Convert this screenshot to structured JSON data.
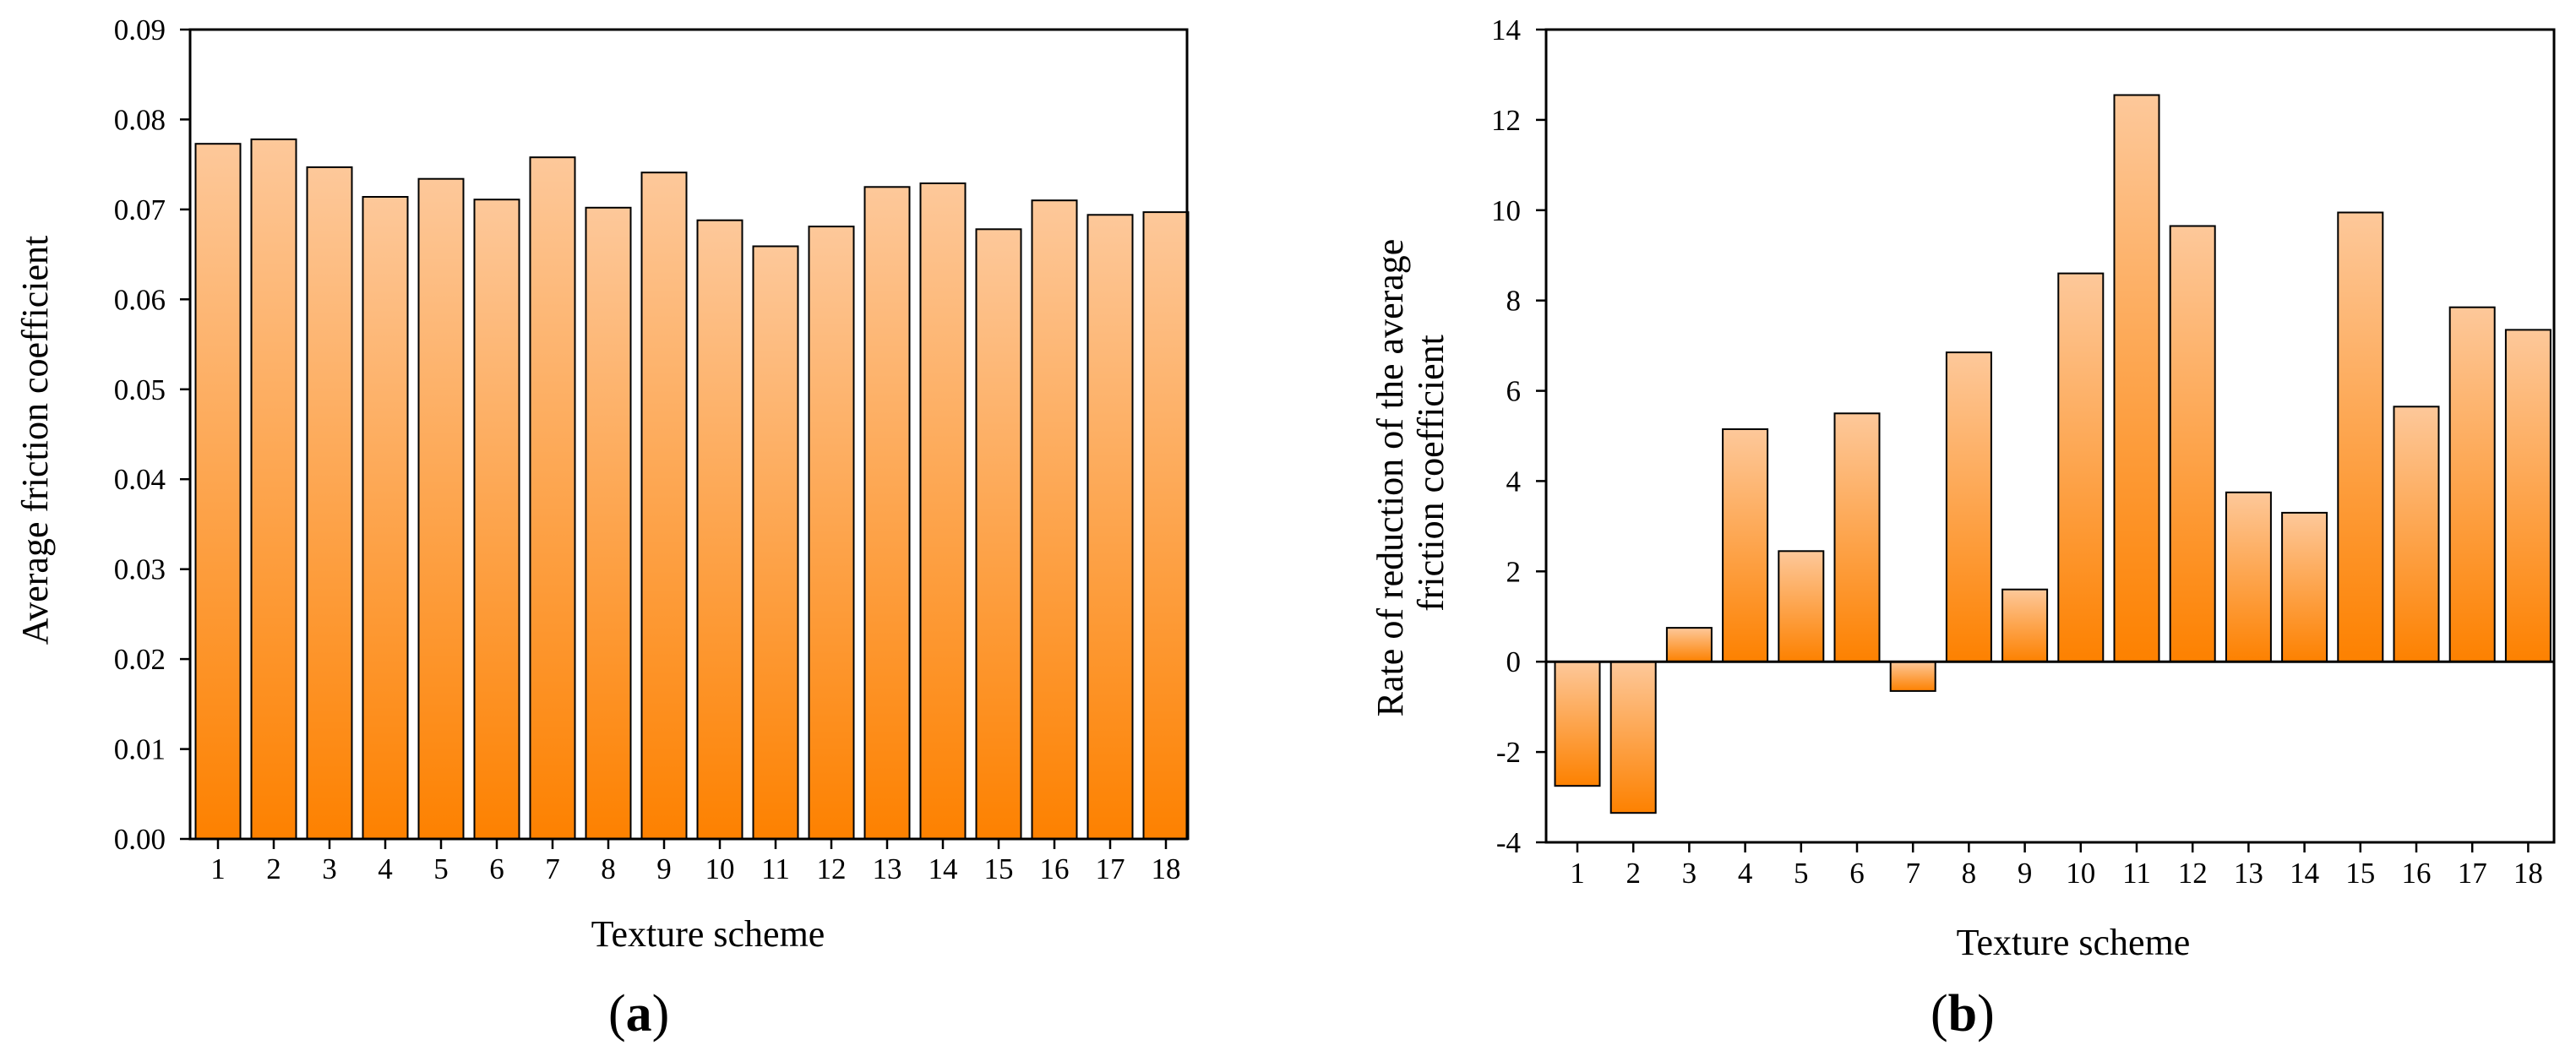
{
  "chart_data": [
    {
      "id": "a",
      "type": "bar",
      "panel_label": "a",
      "title": "",
      "xlabel": "Texture scheme",
      "ylabel": "Average friction coefficient",
      "categories": [
        "1",
        "2",
        "3",
        "4",
        "5",
        "6",
        "7",
        "8",
        "9",
        "10",
        "11",
        "12",
        "13",
        "14",
        "15",
        "16",
        "17",
        "18"
      ],
      "values": [
        0.0773,
        0.0778,
        0.0747,
        0.0714,
        0.0734,
        0.0711,
        0.0758,
        0.0702,
        0.0741,
        0.0688,
        0.0659,
        0.0681,
        0.0725,
        0.0729,
        0.0678,
        0.071,
        0.0694,
        0.0697
      ],
      "ylim": [
        0,
        0.09
      ],
      "yticks": [
        0.0,
        0.01,
        0.02,
        0.03,
        0.04,
        0.05,
        0.06,
        0.07,
        0.08,
        0.09
      ],
      "ytick_labels": [
        "0.00",
        "0.01",
        "0.02",
        "0.03",
        "0.04",
        "0.05",
        "0.06",
        "0.07",
        "0.08",
        "0.09"
      ],
      "grid": false,
      "bar_color_top": "#fdc89a",
      "bar_color_bottom": "#fd8100"
    },
    {
      "id": "b",
      "type": "bar",
      "panel_label": "b",
      "title": "",
      "xlabel": "Texture scheme",
      "ylabel": [
        "Rate of reduction of the average",
        "friction coefficient"
      ],
      "categories": [
        "1",
        "2",
        "3",
        "4",
        "5",
        "6",
        "7",
        "8",
        "9",
        "10",
        "11",
        "12",
        "13",
        "14",
        "15",
        "16",
        "17",
        "18"
      ],
      "values": [
        -2.75,
        -3.35,
        0.75,
        5.15,
        2.45,
        5.5,
        -0.65,
        6.85,
        1.6,
        8.6,
        12.55,
        9.65,
        3.75,
        3.3,
        9.95,
        5.65,
        7.85,
        7.35
      ],
      "ylim": [
        -4,
        14
      ],
      "yticks": [
        -4,
        -2,
        0,
        2,
        4,
        6,
        8,
        10,
        12,
        14
      ],
      "ytick_labels": [
        "-4",
        "-2",
        "0",
        "2",
        "4",
        "6",
        "8",
        "10",
        "12",
        "14"
      ],
      "grid": false,
      "bar_color_top": "#fdc89a",
      "bar_color_bottom": "#fd8100"
    }
  ]
}
